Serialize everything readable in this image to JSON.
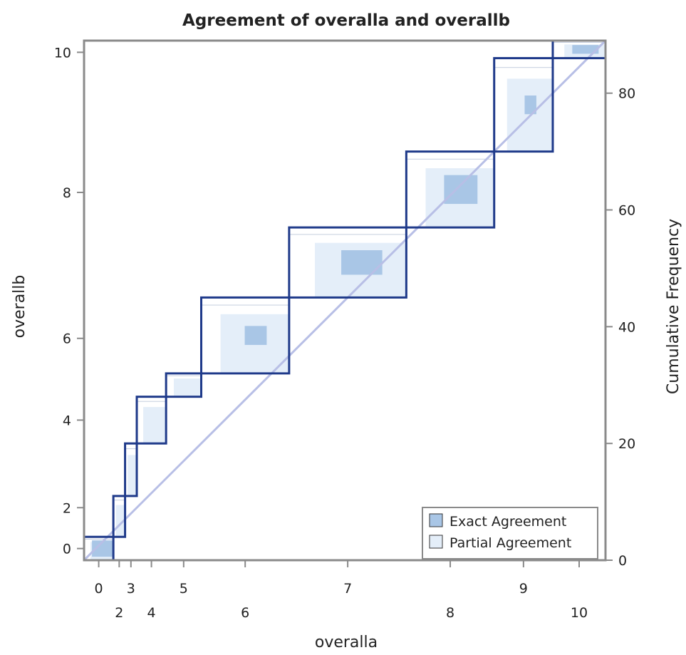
{
  "colors": {
    "frame": "#8a8a8a",
    "step_line": "#1f3a8a",
    "diagonal": "#b8bfe6",
    "exact_fill": "#a9c6e6",
    "partial_fill": "#e4eef9",
    "thin_outline": "#c5cede"
  },
  "chart_data": {
    "type": "agreement",
    "title": "Agreement of overalla and overallb",
    "xlabel": "overalla",
    "ylabel": "overallb",
    "y2label": "Cumulative Frequency",
    "x_categories": [
      "0",
      "2",
      "3",
      "4",
      "5",
      "6",
      "7",
      "8",
      "9",
      "10"
    ],
    "x_category_row": [
      0,
      1,
      0,
      1,
      0,
      1,
      0,
      1,
      0,
      1
    ],
    "y_ticks": [
      "0",
      "2",
      "4",
      "6",
      "8",
      "10"
    ],
    "y_tick_freq": [
      2,
      9,
      24,
      38,
      63,
      87
    ],
    "y2_ticks": [
      0,
      20,
      40,
      60,
      80
    ],
    "y2_range": [
      0,
      89
    ],
    "x_cumulative_freq": [
      0,
      5,
      7,
      9,
      14,
      20,
      35,
      55,
      70,
      80,
      89
    ],
    "y_cumulative_freq": [
      0,
      4,
      11,
      20,
      28,
      32,
      45,
      57,
      70,
      86,
      89
    ],
    "grid": false,
    "legend_position": "bottom-right",
    "legend": [
      {
        "label": "Exact Agreement",
        "kind": "exact"
      },
      {
        "label": "Partial Agreement",
        "kind": "partial"
      }
    ]
  }
}
